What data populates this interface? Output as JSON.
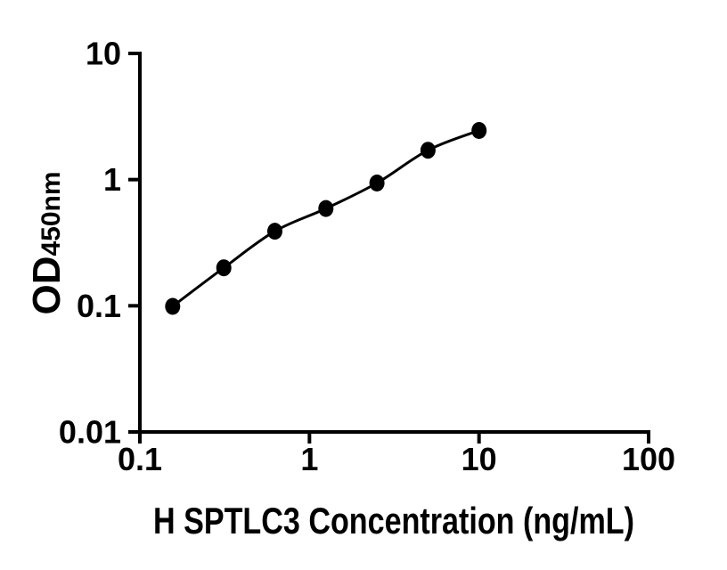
{
  "chart": {
    "background_color": "#ffffff",
    "axis_color": "#000000",
    "curve_color": "#000000",
    "marker_color": "#000000",
    "y_title_main": "OD",
    "y_title_sub": "450nm"
  },
  "chart_data": {
    "type": "scatter",
    "title": "",
    "xlabel": "H SPTLC3 Concentration (ng/mL)",
    "ylabel": "OD450nm",
    "xscale": "log",
    "yscale": "log",
    "xlim": [
      0.1,
      100
    ],
    "ylim": [
      0.01,
      10
    ],
    "x": [
      0.156,
      0.3125,
      0.625,
      1.25,
      2.5,
      5,
      10
    ],
    "y": [
      0.099,
      0.2,
      0.39,
      0.59,
      0.94,
      1.71,
      2.45
    ],
    "x_tick_values": [
      0.1,
      1,
      10,
      100
    ],
    "x_tick_labels": [
      "0.1",
      "1",
      "10",
      "100"
    ],
    "y_tick_values": [
      10,
      1,
      0.1,
      0.01
    ],
    "y_tick_labels": [
      "10",
      "1",
      "0.1",
      "0.01"
    ],
    "marker": "filled-circle",
    "line": "smooth-fit-curve",
    "grid": false,
    "legend": null
  }
}
